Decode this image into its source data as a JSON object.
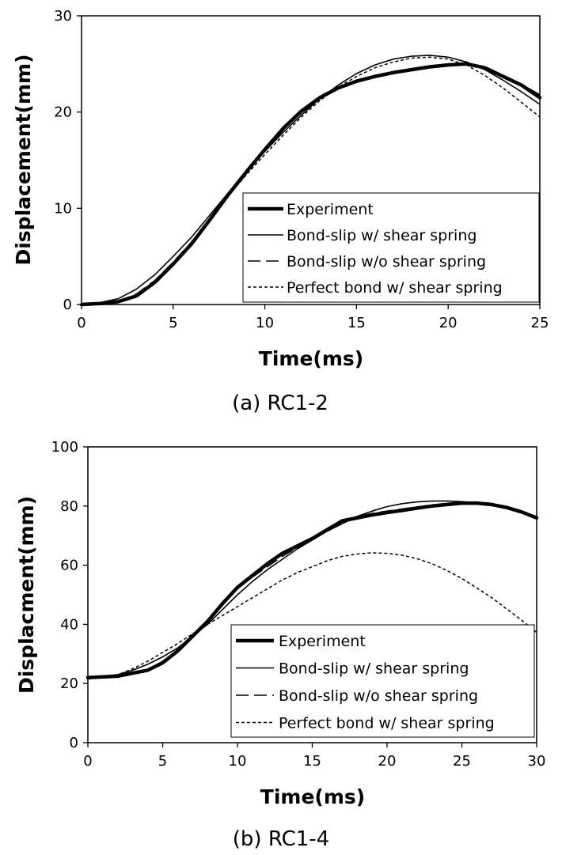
{
  "chart_data": [
    {
      "type": "line",
      "caption": "(a) RC1-2",
      "xlabel": "Time(ms)",
      "ylabel": "Displacement(mm)",
      "xlim": [
        0,
        25
      ],
      "ylim": [
        0,
        30
      ],
      "xticks": [
        "0",
        "5",
        "10",
        "15",
        "20",
        "25"
      ],
      "yticks": [
        "0",
        "10",
        "20",
        "30"
      ],
      "legend_position": "bottom-right",
      "series": [
        {
          "name": "Experiment",
          "style": "thick",
          "x": [
            0,
            1,
            2,
            3,
            4,
            5,
            6,
            7,
            8,
            9,
            10,
            11,
            12,
            13,
            14,
            15,
            16,
            17,
            18,
            19,
            20,
            21,
            22,
            23,
            24,
            25
          ],
          "y": [
            0,
            0.1,
            0.3,
            0.9,
            2.3,
            4.2,
            6.3,
            8.8,
            11.4,
            13.8,
            16.1,
            18.3,
            20.1,
            21.5,
            22.5,
            23.2,
            23.7,
            24.1,
            24.4,
            24.7,
            24.9,
            25.0,
            24.6,
            23.7,
            22.8,
            21.5
          ]
        },
        {
          "name": "Bond-slip w/ shear spring",
          "style": "thin",
          "x": [
            0,
            1,
            2,
            3,
            4,
            5,
            6,
            7,
            8,
            9,
            10,
            11,
            12,
            13,
            14,
            15,
            16,
            17,
            18,
            19,
            20,
            21,
            22,
            23,
            24,
            25
          ],
          "y": [
            0,
            0.2,
            0.6,
            1.6,
            3.1,
            5.0,
            7.0,
            9.3,
            11.6,
            13.8,
            15.9,
            17.9,
            19.7,
            21.4,
            22.8,
            24.0,
            24.9,
            25.5,
            25.8,
            25.9,
            25.7,
            25.2,
            24.4,
            23.3,
            22.1,
            20.8
          ]
        },
        {
          "name": "Bond-slip w/o shear spring",
          "style": "long-dash",
          "x": [
            0,
            1,
            2,
            3,
            4,
            5,
            6,
            7,
            8,
            9,
            10,
            11,
            12,
            13,
            14,
            15,
            16,
            17,
            18,
            19,
            20,
            21,
            22,
            23,
            24,
            25
          ],
          "y": [
            0,
            0.1,
            0.3,
            1.1,
            2.5,
            4.4,
            6.5,
            9.0,
            11.5,
            13.9,
            16.2,
            18.3,
            20.1,
            21.6,
            22.6,
            23.3,
            23.8,
            24.2,
            24.5,
            24.8,
            25.0,
            24.9,
            24.5,
            23.8,
            22.9,
            21.8
          ]
        },
        {
          "name": "Perfect bond w/ shear spring",
          "style": "short-dash",
          "x": [
            0,
            1,
            2,
            3,
            4,
            5,
            6,
            7,
            8,
            9,
            10,
            11,
            12,
            13,
            14,
            15,
            16,
            17,
            18,
            19,
            20,
            21,
            22,
            23,
            24,
            25
          ],
          "y": [
            0,
            0.1,
            0.3,
            1.0,
            2.4,
            4.3,
            6.4,
            8.9,
            11.3,
            13.5,
            15.6,
            17.6,
            19.5,
            21.2,
            22.6,
            23.7,
            24.6,
            25.2,
            25.6,
            25.7,
            25.5,
            24.9,
            23.8,
            22.5,
            21.0,
            19.5
          ]
        }
      ]
    },
    {
      "type": "line",
      "caption": "(b) RC1-4",
      "xlabel": "Time(ms)",
      "ylabel": "Displacment(mm)",
      "xlim": [
        0,
        30
      ],
      "ylim": [
        0,
        100
      ],
      "xticks": [
        "0",
        "5",
        "10",
        "15",
        "20",
        "25",
        "30"
      ],
      "yticks": [
        "0",
        "20",
        "40",
        "60",
        "80",
        "100"
      ],
      "legend_position": "bottom-right",
      "series": [
        {
          "name": "Experiment",
          "style": "thick",
          "x": [
            0,
            2,
            3,
            4,
            5,
            6,
            7,
            8,
            9,
            10,
            11,
            12,
            13,
            14,
            15,
            16,
            17,
            18,
            19,
            20,
            21,
            22,
            23,
            24,
            25,
            26,
            27,
            28,
            29,
            30
          ],
          "y": [
            22,
            22.5,
            23.5,
            24.5,
            27,
            31,
            36,
            41,
            47,
            52.5,
            56.5,
            60.5,
            64,
            66.5,
            69,
            72,
            75,
            76,
            77,
            77.8,
            78.5,
            79.3,
            80,
            80.5,
            81,
            81,
            80.5,
            79.5,
            78,
            76
          ]
        },
        {
          "name": "Bond-slip w/ shear spring",
          "style": "thin",
          "x": [
            0,
            2,
            3,
            4,
            5,
            6,
            7,
            8,
            9,
            10,
            11,
            12,
            13,
            14,
            15,
            16,
            17,
            18,
            19,
            20,
            21,
            22,
            23,
            24,
            25,
            26,
            27,
            28,
            29,
            30
          ],
          "y": [
            22,
            23,
            24.5,
            26.5,
            29,
            32,
            36,
            40,
            45,
            50,
            54.5,
            58.5,
            62,
            65.5,
            68.5,
            71.5,
            74,
            76.5,
            78.3,
            79.8,
            80.8,
            81.4,
            81.7,
            81.7,
            81.5,
            81,
            80.2,
            79.2,
            78,
            76.5
          ]
        },
        {
          "name": "Bond-slip w/o shear spring",
          "style": "long-dash",
          "x": [
            0,
            2,
            3,
            4,
            5,
            6,
            7,
            8,
            9,
            10,
            11,
            12,
            13,
            14,
            15,
            16,
            17,
            18,
            19,
            20,
            21,
            22,
            23,
            24,
            25,
            26,
            27,
            28,
            29,
            30
          ],
          "y": [
            22,
            22.5,
            23.5,
            24.8,
            27.5,
            31.5,
            36.5,
            41.5,
            47,
            52,
            56,
            59.5,
            63,
            66,
            69,
            72,
            75,
            76.5,
            77.5,
            78.3,
            79,
            79.7,
            80.3,
            80.8,
            81.2,
            81.2,
            80.7,
            79.7,
            78.2,
            76.2
          ]
        },
        {
          "name": "Perfect bond w/ shear spring",
          "style": "short-dash",
          "x": [
            0,
            2,
            3,
            4,
            5,
            6,
            7,
            8,
            9,
            10,
            11,
            12,
            13,
            14,
            15,
            16,
            17,
            18,
            19,
            20,
            21,
            22,
            23,
            24,
            25,
            26,
            27,
            28,
            29,
            30
          ],
          "y": [
            22,
            23,
            25,
            27.5,
            30.5,
            33.5,
            36.8,
            40,
            43,
            46,
            49,
            52,
            55,
            57.5,
            59.5,
            61.5,
            63,
            63.8,
            64.2,
            64,
            63.4,
            62.2,
            60.5,
            58.2,
            55.5,
            52.3,
            49,
            45.2,
            41.4,
            37.3
          ]
        }
      ]
    }
  ]
}
